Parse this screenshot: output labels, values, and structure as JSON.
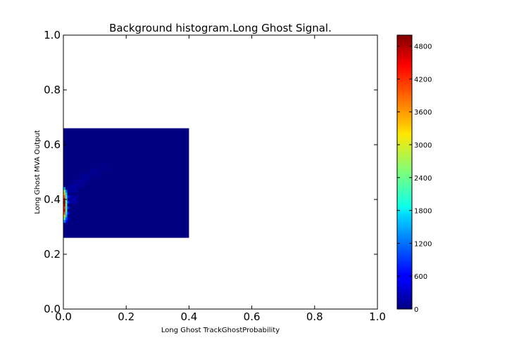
{
  "chart_data": {
    "type": "heatmap",
    "title": "Background histogram.Long Ghost Signal.",
    "xlabel": "Long Ghost TrackGhostProbability",
    "ylabel": "Long Ghost MVA Output",
    "xlim": [
      0.0,
      1.0
    ],
    "ylim": [
      0.0,
      1.0
    ],
    "x_ticks": [
      "0.0",
      "0.2",
      "0.4",
      "0.6",
      "0.8",
      "1.0"
    ],
    "y_ticks": [
      "0.0",
      "0.2",
      "0.4",
      "0.6",
      "0.8",
      "1.0"
    ],
    "colormap": "jet",
    "grid": false,
    "colorbar": {
      "range": [
        0,
        5000
      ],
      "ticks": [
        "0",
        "600",
        "1200",
        "1800",
        "2400",
        "3000",
        "3600",
        "4200",
        "4800"
      ]
    },
    "histogram_region": {
      "x_range": [
        0.0,
        0.4
      ],
      "y_range": [
        0.26,
        0.66
      ],
      "background_count": 0
    },
    "hot_bins": [
      {
        "x": 0.003,
        "y": 0.44,
        "count": 1500
      },
      {
        "x": 0.003,
        "y": 0.43,
        "count": 2700
      },
      {
        "x": 0.003,
        "y": 0.42,
        "count": 3400
      },
      {
        "x": 0.003,
        "y": 0.41,
        "count": 3900
      },
      {
        "x": 0.003,
        "y": 0.4,
        "count": 4500
      },
      {
        "x": 0.003,
        "y": 0.39,
        "count": 4900
      },
      {
        "x": 0.003,
        "y": 0.38,
        "count": 4700
      },
      {
        "x": 0.003,
        "y": 0.37,
        "count": 4200
      },
      {
        "x": 0.003,
        "y": 0.36,
        "count": 4600
      },
      {
        "x": 0.003,
        "y": 0.35,
        "count": 4000
      },
      {
        "x": 0.003,
        "y": 0.34,
        "count": 3300
      },
      {
        "x": 0.003,
        "y": 0.33,
        "count": 2300
      },
      {
        "x": 0.003,
        "y": 0.32,
        "count": 1300
      },
      {
        "x": 0.009,
        "y": 0.43,
        "count": 1200
      },
      {
        "x": 0.009,
        "y": 0.42,
        "count": 1700
      },
      {
        "x": 0.009,
        "y": 0.41,
        "count": 2000
      },
      {
        "x": 0.009,
        "y": 0.4,
        "count": 2100
      },
      {
        "x": 0.009,
        "y": 0.39,
        "count": 2200
      },
      {
        "x": 0.009,
        "y": 0.38,
        "count": 2300
      },
      {
        "x": 0.009,
        "y": 0.37,
        "count": 2100
      },
      {
        "x": 0.009,
        "y": 0.36,
        "count": 2200
      },
      {
        "x": 0.009,
        "y": 0.35,
        "count": 1900
      },
      {
        "x": 0.009,
        "y": 0.34,
        "count": 1500
      },
      {
        "x": 0.009,
        "y": 0.33,
        "count": 1000
      },
      {
        "x": 0.009,
        "y": 0.32,
        "count": 600
      },
      {
        "x": 0.015,
        "y": 0.41,
        "count": 700
      },
      {
        "x": 0.015,
        "y": 0.39,
        "count": 800
      },
      {
        "x": 0.015,
        "y": 0.37,
        "count": 800
      },
      {
        "x": 0.015,
        "y": 0.35,
        "count": 700
      },
      {
        "x": 0.015,
        "y": 0.33,
        "count": 400
      },
      {
        "x": 0.03,
        "y": 0.4,
        "count": 300
      },
      {
        "x": 0.03,
        "y": 0.44,
        "count": 250
      },
      {
        "x": 0.05,
        "y": 0.46,
        "count": 200
      },
      {
        "x": 0.07,
        "y": 0.48,
        "count": 150
      },
      {
        "x": 0.1,
        "y": 0.5,
        "count": 120
      },
      {
        "x": 0.13,
        "y": 0.52,
        "count": 90
      }
    ]
  }
}
